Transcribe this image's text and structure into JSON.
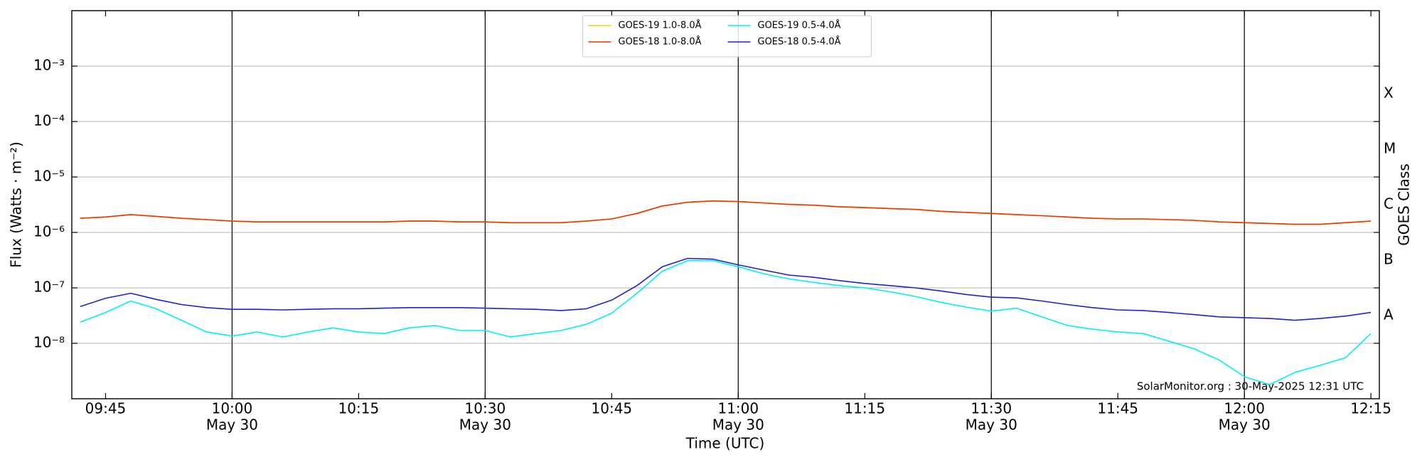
{
  "chart_data": {
    "type": "line",
    "xlabel": "Time (UTC)",
    "ylabel": "Flux (Watts · m⁻²)",
    "y2label": "GOES Class",
    "annotation": "SolarMonitor.org : 30-May-2025 12:31 UTC",
    "log_y": true,
    "grid": true,
    "legend_loc": "upper center",
    "legend_columns": 2,
    "x": [
      "09:42",
      "09:45",
      "09:48",
      "09:51",
      "09:54",
      "09:57",
      "10:00",
      "10:03",
      "10:06",
      "10:09",
      "10:12",
      "10:15",
      "10:18",
      "10:21",
      "10:24",
      "10:27",
      "10:30",
      "10:33",
      "10:36",
      "10:39",
      "10:42",
      "10:45",
      "10:48",
      "10:51",
      "10:54",
      "10:57",
      "11:00",
      "11:03",
      "11:06",
      "11:09",
      "11:12",
      "11:15",
      "11:18",
      "11:21",
      "11:24",
      "11:27",
      "11:30",
      "11:33",
      "11:36",
      "11:39",
      "11:42",
      "11:45",
      "11:48",
      "11:51",
      "11:54",
      "11:57",
      "12:00",
      "12:03",
      "12:06",
      "12:09",
      "12:12",
      "12:15"
    ],
    "xlim": [
      "09:41",
      "12:16"
    ],
    "xticks": [
      "09:45",
      {
        "value": "10:00",
        "label": "10:00",
        "date": "May 30"
      },
      "10:15",
      {
        "value": "10:30",
        "label": "10:30",
        "date": "May 30"
      },
      "10:45",
      {
        "value": "11:00",
        "label": "11:00",
        "date": "May 30"
      },
      "11:15",
      {
        "value": "11:30",
        "label": "11:30",
        "date": "May 30"
      },
      "11:45",
      {
        "value": "12:00",
        "label": "12:00",
        "date": "May 30"
      },
      "12:15"
    ],
    "ylim": [
      1e-09,
      0.01
    ],
    "yticks": [
      {
        "value": 1e-08,
        "label": "10⁻⁸"
      },
      {
        "value": 1e-07,
        "label": "10⁻⁷"
      },
      {
        "value": 1e-06,
        "label": "10⁻⁶"
      },
      {
        "value": 1e-05,
        "label": "10⁻⁵"
      },
      {
        "value": 0.0001,
        "label": "10⁻⁴"
      },
      {
        "value": 0.001,
        "label": "10⁻³"
      }
    ],
    "y2ticks": [
      {
        "value": 3.162e-08,
        "label": "A"
      },
      {
        "value": 3.162e-07,
        "label": "B"
      },
      {
        "value": 3.162e-06,
        "label": "C"
      },
      {
        "value": 3.162e-05,
        "label": "M"
      },
      {
        "value": 0.0003162,
        "label": "X"
      }
    ],
    "series": [
      {
        "name": "GOES-19 1.0-8.0Å",
        "color": "#f5d000",
        "values": [
          1.8e-06,
          1.9e-06,
          2.1e-06,
          1.95e-06,
          1.8e-06,
          1.7e-06,
          1.6e-06,
          1.55e-06,
          1.55e-06,
          1.55e-06,
          1.55e-06,
          1.55e-06,
          1.55e-06,
          1.6e-06,
          1.6e-06,
          1.55e-06,
          1.55e-06,
          1.5e-06,
          1.5e-06,
          1.5e-06,
          1.6e-06,
          1.75e-06,
          2.2e-06,
          3e-06,
          3.5e-06,
          3.7e-06,
          3.6e-06,
          3.4e-06,
          3.2e-06,
          3.1e-06,
          2.9e-06,
          2.8e-06,
          2.7e-06,
          2.6e-06,
          2.4e-06,
          2.3e-06,
          2.2e-06,
          2.1e-06,
          2e-06,
          1.9e-06,
          1.8e-06,
          1.75e-06,
          1.75e-06,
          1.7e-06,
          1.65e-06,
          1.55e-06,
          1.5e-06,
          1.45e-06,
          1.4e-06,
          1.4e-06,
          1.5e-06,
          1.6e-06
        ]
      },
      {
        "name": "GOES-18 1.0-8.0Å",
        "color": "#ee3300",
        "values": [
          1.8e-06,
          1.9e-06,
          2.1e-06,
          1.95e-06,
          1.8e-06,
          1.7e-06,
          1.6e-06,
          1.55e-06,
          1.55e-06,
          1.55e-06,
          1.55e-06,
          1.55e-06,
          1.55e-06,
          1.6e-06,
          1.6e-06,
          1.55e-06,
          1.55e-06,
          1.5e-06,
          1.5e-06,
          1.5e-06,
          1.6e-06,
          1.75e-06,
          2.2e-06,
          3e-06,
          3.5e-06,
          3.7e-06,
          3.6e-06,
          3.4e-06,
          3.2e-06,
          3.1e-06,
          2.9e-06,
          2.8e-06,
          2.7e-06,
          2.6e-06,
          2.4e-06,
          2.3e-06,
          2.2e-06,
          2.1e-06,
          2e-06,
          1.9e-06,
          1.8e-06,
          1.75e-06,
          1.75e-06,
          1.7e-06,
          1.65e-06,
          1.55e-06,
          1.5e-06,
          1.45e-06,
          1.4e-06,
          1.4e-06,
          1.5e-06,
          1.6e-06
        ]
      },
      {
        "name": "GOES-19 0.5-4.0Å",
        "color": "#00f0f0",
        "values": [
          2.4e-08,
          3.6e-08,
          5.8e-08,
          4.2e-08,
          2.6e-08,
          1.6e-08,
          1.35e-08,
          1.6e-08,
          1.3e-08,
          1.6e-08,
          1.9e-08,
          1.6e-08,
          1.5e-08,
          1.9e-08,
          2.1e-08,
          1.7e-08,
          1.7e-08,
          1.3e-08,
          1.5e-08,
          1.7e-08,
          2.2e-08,
          3.5e-08,
          8e-08,
          2e-07,
          3.1e-07,
          3.1e-07,
          2.4e-07,
          1.8e-07,
          1.45e-07,
          1.25e-07,
          1.1e-07,
          1e-07,
          8.5e-08,
          7e-08,
          5.5e-08,
          4.5e-08,
          3.8e-08,
          4.3e-08,
          3e-08,
          2.1e-08,
          1.8e-08,
          1.6e-08,
          1.5e-08,
          1.1e-08,
          8e-09,
          5e-09,
          2.5e-09,
          1.8e-09,
          3e-09,
          4e-09,
          5.5e-09,
          1.5e-08
        ]
      },
      {
        "name": "GOES-18 0.5-4.0Å",
        "color": "#2222cc",
        "values": [
          4.6e-08,
          6.5e-08,
          8e-08,
          6.2e-08,
          5e-08,
          4.4e-08,
          4.1e-08,
          4.1e-08,
          4e-08,
          4.1e-08,
          4.2e-08,
          4.2e-08,
          4.3e-08,
          4.4e-08,
          4.4e-08,
          4.4e-08,
          4.3e-08,
          4.2e-08,
          4.1e-08,
          3.9e-08,
          4.2e-08,
          6e-08,
          1.1e-07,
          2.4e-07,
          3.4e-07,
          3.3e-07,
          2.6e-07,
          2.1e-07,
          1.7e-07,
          1.55e-07,
          1.35e-07,
          1.2e-07,
          1.1e-07,
          1e-07,
          8.8e-08,
          7.6e-08,
          6.8e-08,
          6.6e-08,
          5.8e-08,
          5e-08,
          4.4e-08,
          4e-08,
          3.9e-08,
          3.6e-08,
          3.3e-08,
          3e-08,
          2.9e-08,
          2.8e-08,
          2.6e-08,
          2.8e-08,
          3.1e-08,
          3.6e-08
        ]
      }
    ]
  }
}
